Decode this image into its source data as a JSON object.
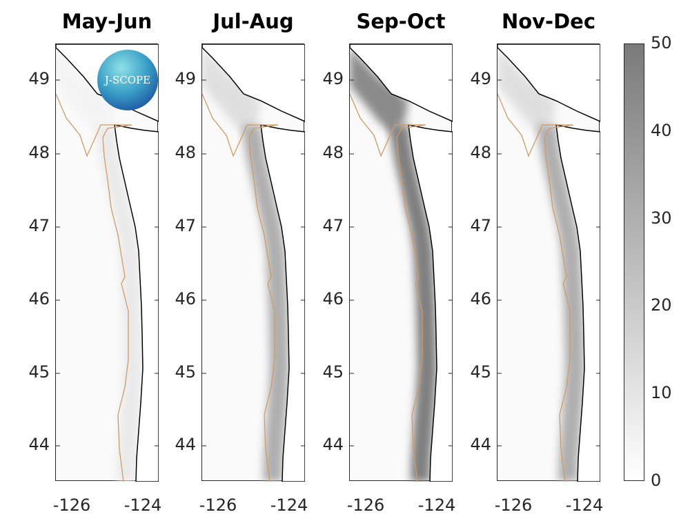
{
  "panels": [
    {
      "title": "May-Jun",
      "nearshore_level": 8
    },
    {
      "title": "Jul-Aug",
      "nearshore_level": 30
    },
    {
      "title": "Sep-Oct",
      "nearshore_level": 48
    },
    {
      "title": "Nov-Dec",
      "nearshore_level": 30
    }
  ],
  "y_ticks": [
    "49",
    "48",
    "47",
    "46",
    "45",
    "44"
  ],
  "x_ticks": [
    "-126",
    "-124"
  ],
  "lat_range": [
    43.5,
    49.5
  ],
  "lon_range": [
    -126.5,
    -123.6
  ],
  "colorbar": {
    "ticks": [
      "0",
      "10",
      "20",
      "30",
      "40",
      "50"
    ],
    "range": [
      0,
      50
    ],
    "colormap": [
      "#ffffff",
      "#7a7a7a"
    ]
  },
  "colors": {
    "coastline": "#000000",
    "contour": "#d09a62"
  },
  "logo": {
    "text": "J-SCOPE"
  }
}
